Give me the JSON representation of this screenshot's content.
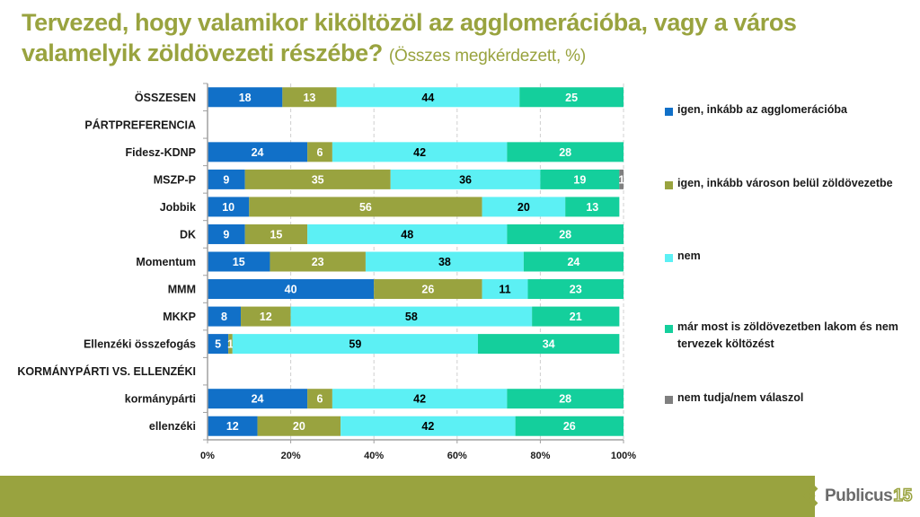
{
  "title": {
    "main": "Tervezed, hogy valamikor kiköltözöl az agglomerációba, vagy a város valamelyik zöldövezeti részébe?",
    "subtitle": "(Összes megkérdezett, %)"
  },
  "colors": {
    "agglomeracio": "#1170c8",
    "varoson_belul": "#99a33f",
    "nem": "#5cf0f4",
    "mar_most": "#14cf9c",
    "nem_tudja": "#7f7f7f",
    "brand": "#99a33f"
  },
  "chart_data": {
    "type": "bar",
    "orientation": "horizontal",
    "stacked": true,
    "title": "Tervezed, hogy valamikor kiköltözöl az agglomerációba, vagy a város valamelyik zöldövezeti részébe?",
    "subtitle": "(Összes megkérdezett, %)",
    "xlabel": "",
    "ylabel": "",
    "xlim": [
      0,
      100
    ],
    "xticks": [
      "0%",
      "20%",
      "40%",
      "60%",
      "80%",
      "100%"
    ],
    "grid": "vertical dashed",
    "legend_position": "right",
    "categories": [
      "ÖSSZESEN",
      "PÁRTPREFERENCIA",
      "Fidesz-KDNP",
      "MSZP-P",
      "Jobbik",
      "DK",
      "Momentum",
      "MMM",
      "MKKP",
      "Ellenzéki összefogás",
      "KORMÁNYPÁRTI VS. ELLENZÉKI",
      "kormánypárti",
      "ellenzéki"
    ],
    "series": [
      {
        "name": "igen, inkább az agglomerációba",
        "color": "#1170c8",
        "label_color": "#ffffff",
        "values": [
          18,
          null,
          24,
          9,
          10,
          9,
          15,
          40,
          8,
          5,
          null,
          24,
          12
        ]
      },
      {
        "name": "igen, inkább városon belül zöldövezetbe",
        "color": "#99a33f",
        "label_color": "#ffffff",
        "values": [
          13,
          null,
          6,
          35,
          56,
          15,
          23,
          26,
          12,
          1,
          null,
          6,
          20
        ]
      },
      {
        "name": "nem",
        "color": "#5cf0f4",
        "label_color": "#000000",
        "values": [
          44,
          null,
          42,
          36,
          20,
          48,
          38,
          11,
          58,
          59,
          null,
          42,
          42
        ]
      },
      {
        "name": "már most is zöldövezetben lakom és nem tervezek költözést",
        "color": "#14cf9c",
        "label_color": "#ffffff",
        "values": [
          25,
          null,
          28,
          19,
          13,
          28,
          24,
          23,
          21,
          34,
          null,
          28,
          26
        ]
      },
      {
        "name": "nem tudja/nem válaszol",
        "color": "#7f7f7f",
        "label_color": "#ffffff",
        "values": [
          null,
          null,
          null,
          1,
          null,
          null,
          null,
          null,
          null,
          null,
          null,
          null,
          null
        ]
      }
    ]
  },
  "legend": [
    {
      "label": "igen, inkább az agglomerációba",
      "color": "#1170c8"
    },
    {
      "label": "igen, inkább városon belül zöldövezetbe",
      "color": "#99a33f"
    },
    {
      "label": "nem",
      "color": "#5cf0f4"
    },
    {
      "label": "már most is zöldövezetben lakom és nem tervezek költözést",
      "color": "#14cf9c"
    },
    {
      "label": "nem tudja/nem válaszol",
      "color": "#7f7f7f"
    }
  ],
  "footer": {
    "logo_text": "Publicus",
    "logo_number": "15"
  }
}
